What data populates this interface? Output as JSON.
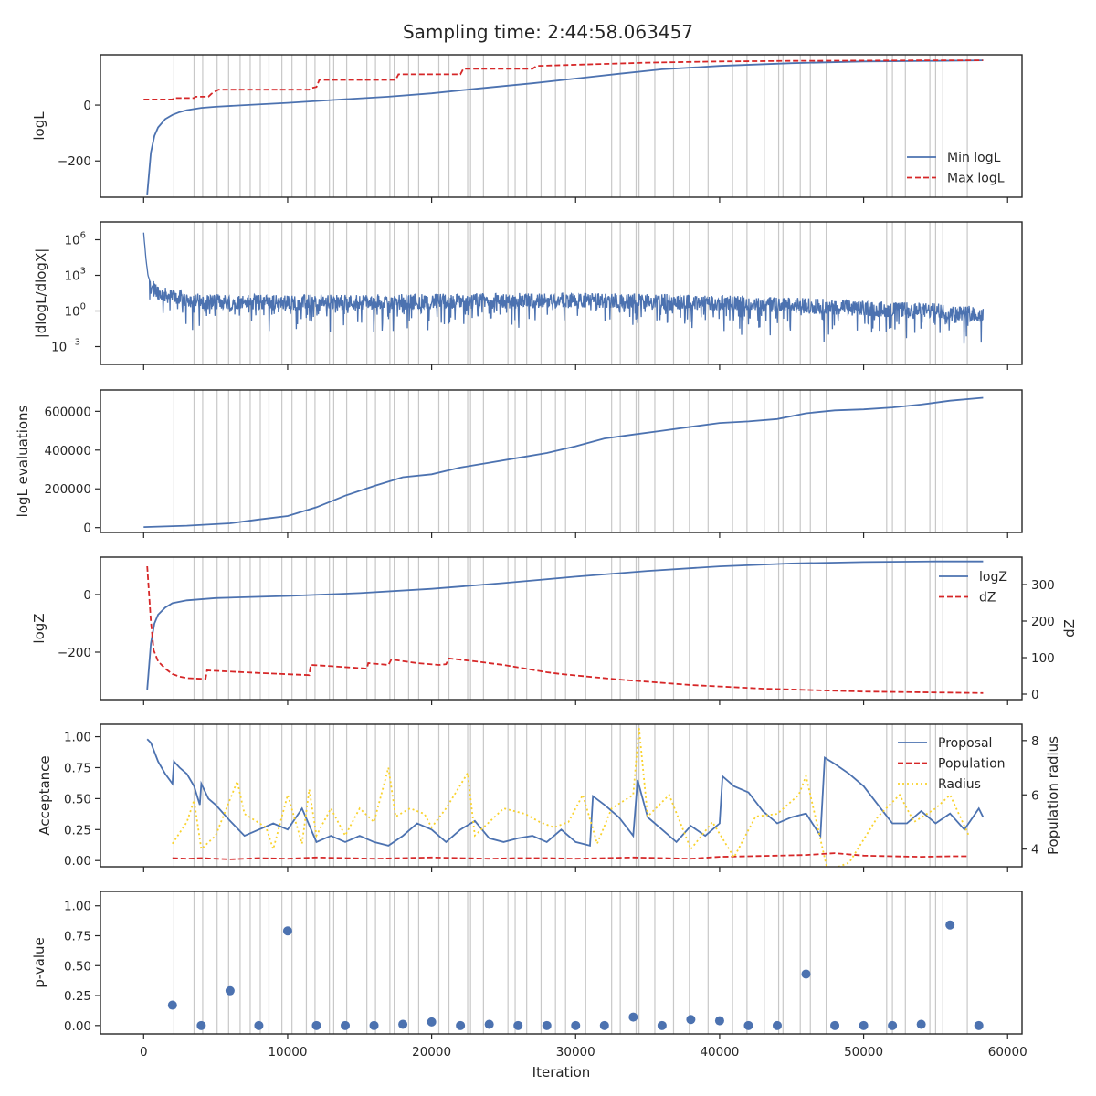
{
  "figure": {
    "title": "Sampling time: 2:44:58.063457"
  },
  "colors": {
    "blue": "#4c72b0",
    "red": "#d62728",
    "yellow": "#f9d22d",
    "grey": "#c8c8c8",
    "point": "#4c72b0"
  },
  "chart_data": [
    {
      "id": "logl",
      "type": "line",
      "ylabel": "logL",
      "xlim": [
        -3000,
        61000
      ],
      "ylim": [
        -330,
        180
      ],
      "yticks": [
        0,
        -200
      ],
      "ytick_labels": [
        "0",
        "−200"
      ],
      "legend": "right",
      "series": [
        {
          "name": "Min logL",
          "color": "#4c72b0",
          "style": "solid",
          "x": [
            250,
            500,
            750,
            1000,
            1500,
            2000,
            2500,
            3000,
            4000,
            5000,
            7000,
            10000,
            13000,
            17000,
            20000,
            23000,
            27000,
            30000,
            33000,
            36000,
            40000,
            45000,
            50000,
            55000,
            58300
          ],
          "y": [
            -320,
            -170,
            -110,
            -80,
            -50,
            -35,
            -25,
            -18,
            -10,
            -6,
            0,
            8,
            18,
            30,
            42,
            58,
            78,
            95,
            112,
            128,
            140,
            150,
            156,
            158,
            160
          ]
        },
        {
          "name": "Max logL",
          "color": "#d62728",
          "style": "dashed",
          "x": [
            0,
            2000,
            2100,
            3500,
            3600,
            4500,
            4700,
            5000,
            5200,
            11500,
            11600,
            12000,
            12200,
            17500,
            17700,
            22000,
            22200,
            27000,
            27300,
            30500,
            35000,
            40000,
            45000,
            50000,
            55000,
            58300
          ],
          "y": [
            20,
            20,
            25,
            25,
            30,
            30,
            40,
            50,
            55,
            55,
            60,
            65,
            90,
            90,
            110,
            110,
            130,
            130,
            140,
            145,
            152,
            156,
            158,
            159,
            160,
            160
          ]
        }
      ]
    },
    {
      "id": "dlogl",
      "type": "line",
      "ylabel": "|dlogL/dlogX|",
      "xlim": [
        -3000,
        61000
      ],
      "yscale": "log",
      "ylim_exp": [
        -4.5,
        7.5
      ],
      "yticks": [
        6,
        3,
        0,
        -3
      ],
      "ytick_labels": [
        "10",
        "10",
        "10",
        "10"
      ],
      "ytick_exps": [
        "6",
        "3",
        "0",
        "−3"
      ],
      "series": [
        {
          "name": "",
          "color": "#4c72b0",
          "style": "noisy",
          "x": [
            0,
            150,
            300,
            500,
            800,
            1200,
            2000,
            4000,
            10000,
            20000,
            30000,
            40000,
            47000,
            50000,
            55000,
            58300
          ],
          "y_exp": [
            6.6,
            4.5,
            3.0,
            2.3,
            2.0,
            1.6,
            1.4,
            1.0,
            0.9,
            1.0,
            1.1,
            0.9,
            0.6,
            0.4,
            0.2,
            -0.1
          ]
        }
      ]
    },
    {
      "id": "evals",
      "type": "line",
      "ylabel": "logL evaluations",
      "xlim": [
        -3000,
        61000
      ],
      "ylim": [
        -25000,
        710000
      ],
      "yticks": [
        0,
        200000,
        400000,
        600000
      ],
      "ytick_labels": [
        "0",
        "200000",
        "400000",
        "600000"
      ],
      "series": [
        {
          "name": "",
          "color": "#4c72b0",
          "style": "solid",
          "x": [
            0,
            3000,
            6000,
            8000,
            10000,
            12000,
            14000,
            16000,
            18000,
            20000,
            22000,
            24000,
            26000,
            28000,
            30000,
            32000,
            34000,
            36000,
            38000,
            40000,
            42000,
            44000,
            46000,
            48000,
            50000,
            52000,
            54000,
            56000,
            58300
          ],
          "y": [
            3000,
            10000,
            22000,
            42000,
            60000,
            105000,
            165000,
            215000,
            260000,
            275000,
            310000,
            335000,
            360000,
            385000,
            420000,
            460000,
            480000,
            500000,
            520000,
            540000,
            548000,
            560000,
            590000,
            605000,
            610000,
            620000,
            635000,
            655000,
            670000
          ]
        }
      ]
    },
    {
      "id": "logz",
      "type": "line",
      "ylabel": "logZ",
      "ylabel2": "dZ",
      "xlim": [
        -3000,
        61000
      ],
      "ylim": [
        -365,
        130
      ],
      "ylim2": [
        -15,
        375
      ],
      "yticks": [
        0,
        -200
      ],
      "ytick_labels": [
        "0",
        "−200"
      ],
      "yticks2": [
        0,
        100,
        200,
        300
      ],
      "ytick_labels2": [
        "0",
        "100",
        "200",
        "300"
      ],
      "legend": "top-right",
      "series": [
        {
          "name": "logZ",
          "color": "#4c72b0",
          "style": "solid",
          "axis": "left",
          "x": [
            250,
            500,
            750,
            1000,
            1500,
            2000,
            3000,
            5000,
            10000,
            15000,
            20000,
            25000,
            30000,
            35000,
            40000,
            45000,
            50000,
            55000,
            58300
          ],
          "y": [
            -330,
            -170,
            -100,
            -70,
            -45,
            -30,
            -20,
            -12,
            -5,
            5,
            20,
            40,
            62,
            82,
            98,
            108,
            113,
            115,
            115
          ]
        },
        {
          "name": "dZ",
          "color": "#d62728",
          "style": "dashed",
          "axis": "right",
          "x": [
            250,
            500,
            700,
            1000,
            1500,
            2000,
            2500,
            3000,
            3500,
            4000,
            4300,
            4400,
            8000,
            11500,
            11600,
            12500,
            15500,
            15600,
            17000,
            17200,
            19000,
            20500,
            21000,
            21200,
            23000,
            25000,
            28000,
            29000,
            33000,
            38000,
            43000,
            50000,
            58300
          ],
          "y": [
            350,
            200,
            120,
            90,
            70,
            55,
            48,
            44,
            43,
            42,
            42,
            65,
            58,
            52,
            80,
            78,
            70,
            85,
            80,
            95,
            85,
            80,
            82,
            98,
            90,
            80,
            60,
            55,
            40,
            25,
            15,
            7,
            3
          ]
        }
      ]
    },
    {
      "id": "acceptance",
      "type": "line",
      "ylabel": "Acceptance",
      "ylabel2": "Population radius",
      "xlim": [
        -3000,
        61000
      ],
      "ylim": [
        -0.05,
        1.1
      ],
      "ylim2": [
        3.35,
        8.6
      ],
      "yticks": [
        0,
        0.25,
        0.5,
        0.75,
        1.0
      ],
      "ytick_labels": [
        "0.00",
        "0.25",
        "0.50",
        "0.75",
        "1.00"
      ],
      "yticks2": [
        4,
        6,
        8
      ],
      "ytick_labels2": [
        "4",
        "6",
        "8"
      ],
      "legend": "top-right",
      "series": [
        {
          "name": "Proposal",
          "color": "#4c72b0",
          "style": "solid",
          "axis": "left",
          "x": [
            250,
            500,
            1000,
            1500,
            2000,
            2100,
            2500,
            3000,
            3500,
            3900,
            4000,
            4500,
            5000,
            6000,
            7000,
            8000,
            9000,
            10000,
            11000,
            12000,
            13000,
            14000,
            15000,
            16000,
            17000,
            18000,
            19000,
            20000,
            21000,
            22000,
            23000,
            24000,
            25000,
            26000,
            27000,
            28000,
            29000,
            30000,
            31000,
            31200,
            32000,
            33000,
            34000,
            34300,
            35000,
            36000,
            37000,
            38000,
            39000,
            40000,
            40200,
            41000,
            42000,
            43000,
            44000,
            45000,
            46000,
            47000,
            47300,
            48000,
            49000,
            50000,
            51000,
            52000,
            53000,
            54000,
            55000,
            56000,
            57000,
            58000,
            58300
          ],
          "y": [
            0.98,
            0.95,
            0.8,
            0.7,
            0.62,
            0.8,
            0.75,
            0.7,
            0.6,
            0.45,
            0.62,
            0.5,
            0.45,
            0.32,
            0.2,
            0.25,
            0.3,
            0.25,
            0.42,
            0.15,
            0.2,
            0.15,
            0.2,
            0.15,
            0.12,
            0.2,
            0.3,
            0.25,
            0.15,
            0.25,
            0.32,
            0.18,
            0.15,
            0.18,
            0.2,
            0.15,
            0.25,
            0.15,
            0.12,
            0.52,
            0.45,
            0.35,
            0.2,
            0.65,
            0.35,
            0.25,
            0.15,
            0.28,
            0.2,
            0.3,
            0.68,
            0.6,
            0.55,
            0.4,
            0.3,
            0.35,
            0.38,
            0.2,
            0.83,
            0.78,
            0.7,
            0.6,
            0.45,
            0.3,
            0.3,
            0.4,
            0.3,
            0.38,
            0.25,
            0.42,
            0.35
          ]
        },
        {
          "name": "Population",
          "color": "#d62728",
          "style": "dashed",
          "axis": "left",
          "x": [
            2000,
            3000,
            4000,
            5000,
            6000,
            8000,
            10000,
            12000,
            14000,
            16000,
            18000,
            20000,
            22000,
            24000,
            26000,
            28000,
            30000,
            32000,
            34000,
            36000,
            38000,
            40000,
            42000,
            44000,
            46000,
            48000,
            50000,
            52000,
            54000,
            56000,
            57300
          ],
          "y": [
            0.02,
            0.015,
            0.02,
            0.015,
            0.01,
            0.02,
            0.015,
            0.025,
            0.02,
            0.015,
            0.02,
            0.025,
            0.02,
            0.015,
            0.02,
            0.02,
            0.015,
            0.02,
            0.025,
            0.02,
            0.015,
            0.03,
            0.035,
            0.04,
            0.045,
            0.06,
            0.04,
            0.035,
            0.03,
            0.035,
            0.035
          ]
        },
        {
          "name": "Radius",
          "color": "#f9d22d",
          "style": "dotted",
          "axis": "right",
          "x": [
            2000,
            3000,
            3500,
            4000,
            5000,
            6500,
            7000,
            8500,
            9000,
            10000,
            11000,
            11500,
            12000,
            13000,
            14000,
            15000,
            16000,
            17000,
            17500,
            18500,
            19500,
            20000,
            21000,
            22500,
            23000,
            24000,
            25000,
            26500,
            27500,
            28500,
            29500,
            30500,
            31500,
            32500,
            34000,
            34400,
            35000,
            36500,
            38000,
            39500,
            41000,
            42500,
            44000,
            45500,
            46000,
            47500,
            49000,
            51000,
            52500,
            53500,
            55000,
            56000,
            57300
          ],
          "y": [
            4.2,
            5.0,
            5.8,
            4.0,
            4.5,
            6.5,
            5.3,
            4.8,
            4.0,
            6.0,
            4.2,
            6.2,
            4.5,
            5.5,
            4.5,
            5.5,
            5.0,
            7.0,
            5.2,
            5.5,
            5.3,
            4.8,
            5.5,
            6.8,
            4.5,
            5.0,
            5.5,
            5.3,
            5.0,
            4.8,
            5.0,
            6.0,
            4.2,
            5.5,
            6.0,
            8.5,
            5.2,
            6.0,
            4.0,
            5.0,
            3.7,
            5.2,
            5.3,
            6.0,
            6.7,
            3.2,
            3.5,
            5.2,
            6.0,
            5.0,
            5.5,
            6.0,
            4.5
          ]
        }
      ]
    },
    {
      "id": "pvalue",
      "type": "scatter",
      "ylabel": "p-value",
      "xlabel": "Iteration",
      "xlim": [
        -3000,
        61000
      ],
      "ylim": [
        -0.07,
        1.12
      ],
      "yticks": [
        0,
        0.25,
        0.5,
        0.75,
        1.0
      ],
      "ytick_labels": [
        "0.00",
        "0.25",
        "0.50",
        "0.75",
        "1.00"
      ],
      "xticks": [
        0,
        10000,
        20000,
        30000,
        40000,
        50000,
        60000
      ],
      "xtick_labels": [
        "0",
        "10000",
        "20000",
        "30000",
        "40000",
        "50000",
        "60000"
      ],
      "series": [
        {
          "name": "",
          "color": "#4c72b0",
          "x": [
            2000,
            4000,
            6000,
            8000,
            10000,
            12000,
            14000,
            16000,
            18000,
            20000,
            22000,
            24000,
            26000,
            28000,
            30000,
            32000,
            34000,
            36000,
            38000,
            40000,
            42000,
            44000,
            46000,
            48000,
            50000,
            52000,
            54000,
            56000,
            58000
          ],
          "y": [
            0.17,
            0.0,
            0.29,
            0.0,
            0.79,
            0.0,
            0.0,
            0.0,
            0.01,
            0.03,
            0.0,
            0.01,
            0.0,
            0.0,
            0.0,
            0.0,
            0.07,
            0.0,
            0.05,
            0.04,
            0.0,
            0.0,
            0.43,
            0.0,
            0.0,
            0.0,
            0.01,
            0.84,
            0.0
          ]
        }
      ]
    }
  ],
  "vlines_x": [
    2100,
    3500,
    4100,
    5100,
    5900,
    6700,
    7400,
    8100,
    8700,
    9600,
    10300,
    11300,
    11900,
    12900,
    13200,
    14100,
    15500,
    16100,
    17100,
    17400,
    18400,
    19100,
    20500,
    21200,
    22500,
    22700,
    23600,
    25300,
    25800,
    26600,
    27600,
    28600,
    29300,
    30700,
    32500,
    33100,
    34200,
    34400,
    35500,
    36800,
    37900,
    39200,
    40900,
    41900,
    43100,
    44100,
    44400,
    45600,
    46300,
    47400,
    51600,
    52000,
    52900,
    54600,
    55000,
    55500,
    57200
  ]
}
